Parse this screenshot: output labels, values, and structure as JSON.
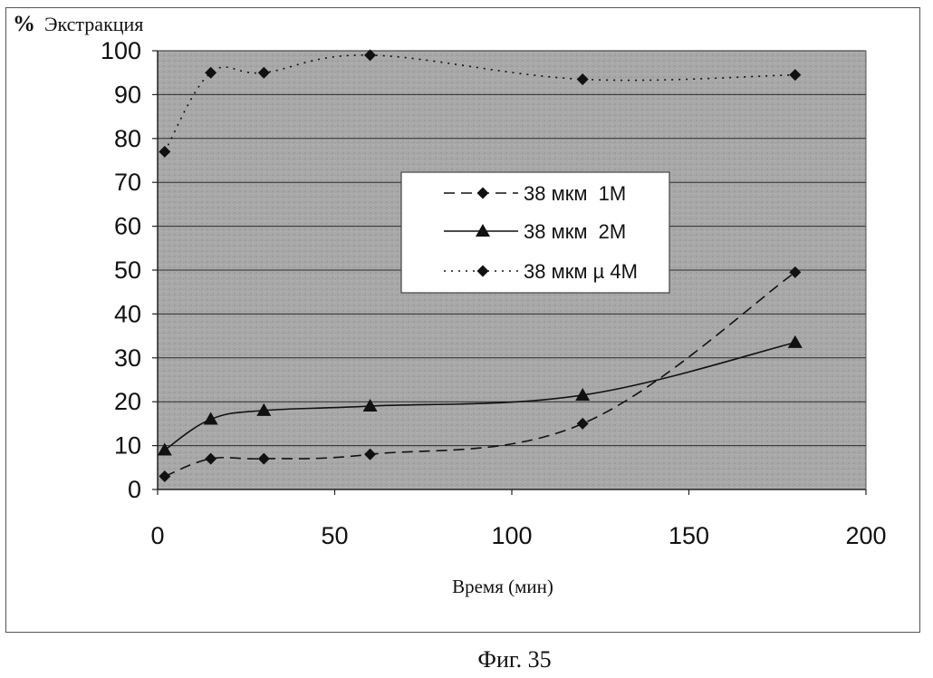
{
  "caption": "Фиг. 35",
  "chart_data": {
    "type": "line",
    "ylabel_prefix": "%",
    "ylabel": "Экстракция",
    "xlabel": "Время (мин)",
    "xlim": [
      0,
      200
    ],
    "ylim": [
      0,
      100
    ],
    "xticks": [
      0,
      50,
      100,
      150,
      200
    ],
    "yticks": [
      0,
      10,
      20,
      30,
      40,
      50,
      60,
      70,
      80,
      90,
      100
    ],
    "grid": "horizontal",
    "legend_position": "center-right",
    "series": [
      {
        "name": "38 мкм  1М",
        "line_style": "dashed",
        "marker": "diamond",
        "x": [
          2,
          15,
          30,
          60,
          120,
          180
        ],
        "y": [
          3,
          7,
          7,
          8,
          15,
          49.5
        ]
      },
      {
        "name": "38 мкм  2М",
        "line_style": "solid",
        "marker": "triangle",
        "x": [
          2,
          15,
          30,
          60,
          120,
          180
        ],
        "y": [
          9,
          16,
          18,
          19,
          21.5,
          33.5
        ]
      },
      {
        "name": "38 мкм µ 4М",
        "line_style": "dotted",
        "marker": "diamond",
        "x": [
          2,
          15,
          30,
          60,
          120,
          180
        ],
        "y": [
          77,
          95,
          95,
          99,
          93.5,
          94.5
        ]
      }
    ]
  }
}
